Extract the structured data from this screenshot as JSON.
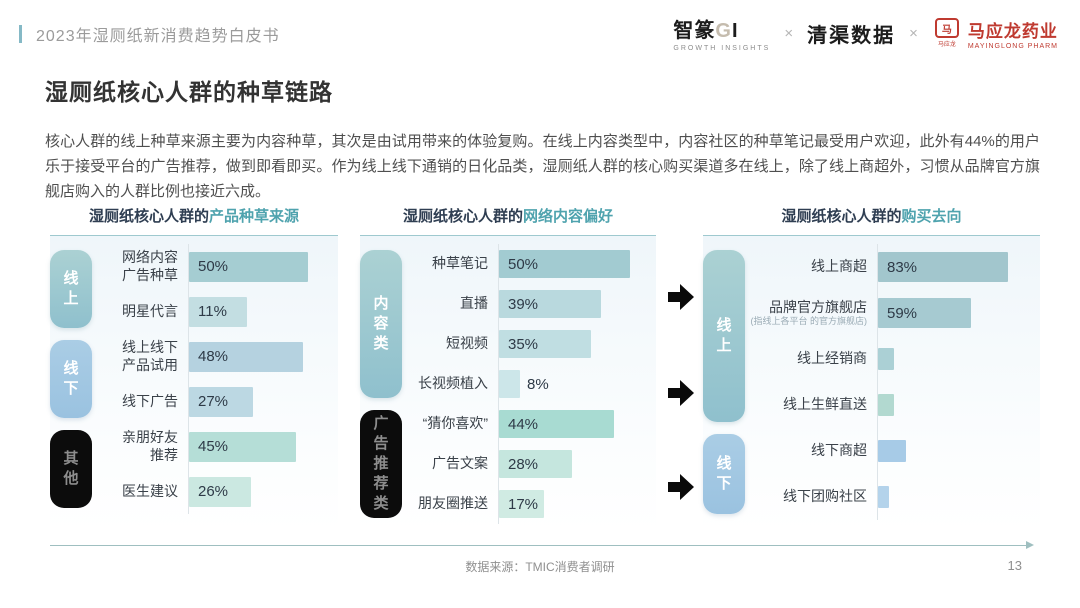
{
  "header": {
    "eyebrow": "2023年湿厕纸新消费趋势白皮书",
    "logos": {
      "partner1_name": "智篆",
      "partner1_g": "G",
      "partner1_i": "I",
      "partner1_sub": "GROWTH INSIGHTS",
      "separator": "×",
      "partner2_name": "清渠数据",
      "partner3_seal": "马",
      "partner3_seal_sub": "马应龙",
      "partner3_name": "马应龙药业",
      "partner3_sub": "MAYINGLONG PHARM",
      "brand_red": "#bf3a30"
    }
  },
  "title": "湿厕纸核心人群的种草链路",
  "intro": "核心人群的线上种草来源主要为内容种草，其次是由试用带来的体验复购。在线上内容类型中，内容社区的种草笔记最受用户欢迎，此外有44%的用户乐于接受平台的广告推荐，做到即看即买。作为线上线下通销的日化品类，湿厕纸人群的核心购买渠道多在线上，除了线上商超外，习惯从品牌官方旗舰店购入的人群比例也接近六成。",
  "accent_teal": "#4fa3ae",
  "chart_data": [
    {
      "type": "bar",
      "title_prefix": "湿厕纸核心人群的",
      "title_highlight": "产品种草来源",
      "unit": "%",
      "groups": [
        {
          "label": "线上",
          "pill_style": "pill-teal",
          "rows": [
            {
              "label": "网络内容\n广告种草",
              "value": 50,
              "value_label": "50%",
              "color": "#a5cdd2"
            },
            {
              "label": "明星代言",
              "value": 11,
              "value_label": "11%",
              "color": "#c3dee2"
            }
          ]
        },
        {
          "label": "线下",
          "pill_style": "pill-blue",
          "rows": [
            {
              "label": "线上线下\n产品试用",
              "value": 48,
              "value_label": "48%",
              "color": "#b5d2e0"
            },
            {
              "label": "线下广告",
              "value": 27,
              "value_label": "27%",
              "color": "#bcd8e3"
            }
          ]
        },
        {
          "label": "其他",
          "pill_style": "pill-black",
          "rows": [
            {
              "label": "亲朋好友\n推荐",
              "value": 45,
              "value_label": "45%",
              "color": "#b5ded7"
            },
            {
              "label": "医生建议",
              "value": 26,
              "value_label": "26%",
              "color": "#cbe8e1"
            }
          ]
        }
      ]
    },
    {
      "type": "bar",
      "title_prefix": "湿厕纸核心人群的",
      "title_highlight": "网络内容偏好",
      "unit": "%",
      "groups": [
        {
          "label": "内容类",
          "pill_style": "pill-teal",
          "rows": [
            {
              "label": "种草笔记",
              "value": 50,
              "value_label": "50%",
              "color": "#a2cbd1"
            },
            {
              "label": "直播",
              "value": 39,
              "value_label": "39%",
              "color": "#b9d9de"
            },
            {
              "label": "短视频",
              "value": 35,
              "value_label": "35%",
              "color": "#c0dee2"
            },
            {
              "label": "长视频植入",
              "value": 8,
              "value_label": "8%",
              "color": "#cce6e9"
            }
          ]
        },
        {
          "label": "广告推荐类",
          "pill_style": "pill-black",
          "rows": [
            {
              "label": "“猜你喜欢”",
              "value": 44,
              "value_label": "44%",
              "color": "#a8dbd2"
            },
            {
              "label": "广告文案",
              "value": 28,
              "value_label": "28%",
              "color": "#c5e6de"
            },
            {
              "label": "朋友圈推送",
              "value": 17,
              "value_label": "17%",
              "color": "#d0ebe3"
            }
          ]
        }
      ]
    },
    {
      "type": "bar",
      "title_prefix": "湿厕纸核心人群的",
      "title_highlight": "购买去向",
      "unit": "%",
      "groups": [
        {
          "label": "线上",
          "pill_style": "pill-teal",
          "rows": [
            {
              "label": "线上商超",
              "value": 83,
              "value_label": "83%",
              "color": "#a2c6cd"
            },
            {
              "label": "品牌官方旗舰店",
              "sublabel": "(指线上各平台\n的官方旗舰店)",
              "value": 59,
              "value_label": "59%",
              "color": "#a6cad1"
            },
            {
              "label": "线上经销商",
              "value": 10,
              "value_label": "",
              "color": "#abd0d5"
            },
            {
              "label": "线上生鲜直送",
              "value": 10,
              "value_label": "",
              "color": "#b2d9d0"
            }
          ]
        },
        {
          "label": "线下",
          "pill_style": "pill-blue",
          "rows": [
            {
              "label": "线下商超",
              "value": 18,
              "value_label": "",
              "color": "#a7cbe7"
            },
            {
              "label": "线下团购社区",
              "value": 7,
              "value_label": "",
              "color": "#b4d3eb"
            }
          ]
        }
      ]
    }
  ],
  "footer": {
    "source": "数据来源：TMIC消费者调研",
    "page": "13"
  }
}
